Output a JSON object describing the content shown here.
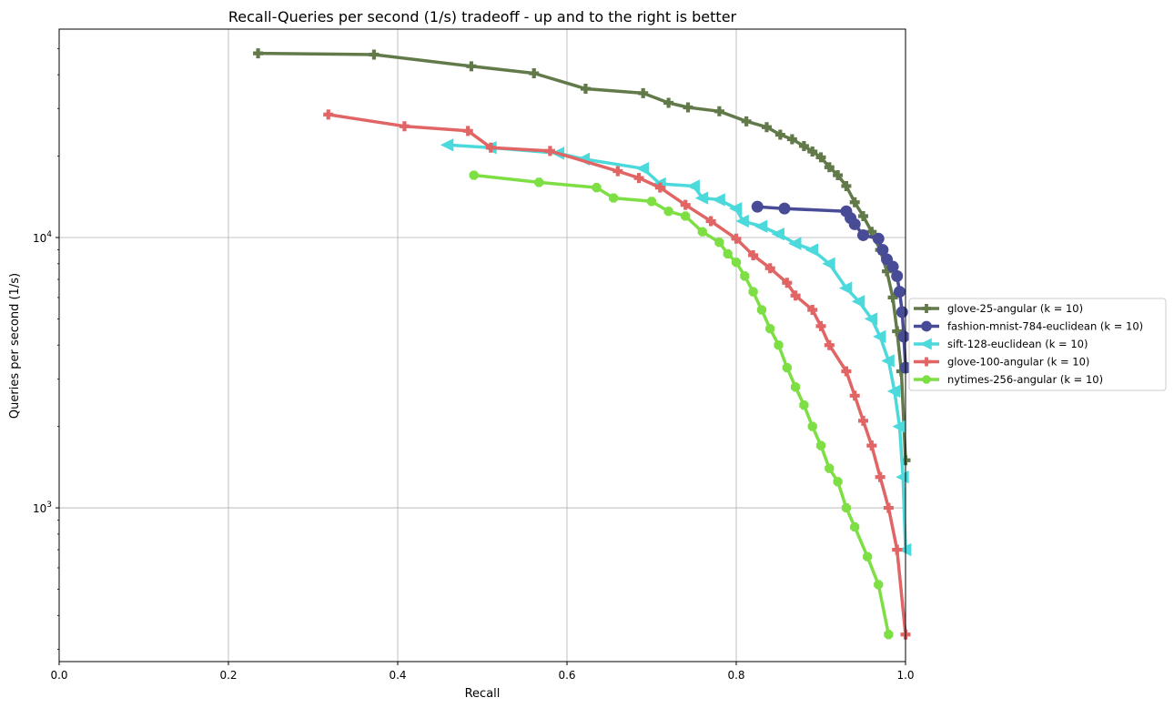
{
  "chart_data": {
    "type": "line",
    "title": "Recall-Queries per second (1/s) tradeoff - up and to the right is better",
    "xlabel": "Recall",
    "ylabel": "Queries per second (1/s)",
    "xlim": [
      0.0,
      1.0
    ],
    "ylim": [
      270,
      59000
    ],
    "yscale": "log",
    "grid": true,
    "legend_position": "outside right, center",
    "x_ticks": [
      "0.0",
      "0.2",
      "0.4",
      "0.6",
      "0.8",
      "1.0"
    ],
    "x_tick_values": [
      0.0,
      0.2,
      0.4,
      0.6,
      0.8,
      1.0
    ],
    "y_ticks": [
      {
        "value": 1000,
        "base": "10",
        "exp": "3"
      },
      {
        "value": 10000,
        "base": "10",
        "exp": "4"
      }
    ],
    "series": [
      {
        "name": "glove-25-angular (k = 10)",
        "color": "#627a4a",
        "marker": "plus",
        "x": [
          0.235,
          0.372,
          0.487,
          0.561,
          0.622,
          0.69,
          0.72,
          0.743,
          0.78,
          0.812,
          0.836,
          0.852,
          0.866,
          0.88,
          0.89,
          0.9,
          0.91,
          0.92,
          0.93,
          0.94,
          0.95,
          0.96,
          0.97,
          0.978,
          0.985,
          0.99,
          0.995,
          1.0
        ],
        "y": [
          48000,
          47500,
          43000,
          40500,
          35500,
          34200,
          31500,
          30300,
          29300,
          26900,
          25600,
          24000,
          23100,
          21800,
          20800,
          19800,
          18200,
          17000,
          15500,
          13500,
          12000,
          10500,
          9000,
          7500,
          6000,
          4500,
          3200,
          1500
        ]
      },
      {
        "name": "fashion-mnist-784-euclidean (k = 10)",
        "color": "#484b96",
        "marker": "circle",
        "x": [
          0.825,
          0.857,
          0.93,
          0.935,
          0.94,
          0.95,
          0.968,
          0.973,
          0.978,
          0.985,
          0.99,
          0.993,
          0.996,
          0.998,
          1.0
        ],
        "y": [
          13000,
          12800,
          12500,
          11800,
          11200,
          10200,
          9900,
          9000,
          8300,
          7800,
          7200,
          6300,
          5300,
          4300,
          3300
        ]
      },
      {
        "name": "sift-128-euclidean (k = 10)",
        "color": "#4bd9dc",
        "marker": "triangle-left",
        "x": [
          0.459,
          0.51,
          0.59,
          0.62,
          0.69,
          0.71,
          0.75,
          0.76,
          0.78,
          0.8,
          0.808,
          0.83,
          0.85,
          0.87,
          0.89,
          0.91,
          0.93,
          0.945,
          0.96,
          0.97,
          0.98,
          0.987,
          0.993,
          0.997,
          1.0
        ],
        "y": [
          22000,
          21500,
          20500,
          19500,
          18000,
          15800,
          15500,
          14000,
          13800,
          12800,
          11500,
          11000,
          10300,
          9500,
          9000,
          8000,
          6500,
          5800,
          5000,
          4300,
          3500,
          2700,
          2000,
          1300,
          700
        ]
      },
      {
        "name": "glove-100-angular (k = 10)",
        "color": "#e06564",
        "marker": "plus",
        "x": [
          0.318,
          0.408,
          0.483,
          0.51,
          0.58,
          0.66,
          0.685,
          0.71,
          0.74,
          0.77,
          0.8,
          0.82,
          0.84,
          0.86,
          0.87,
          0.89,
          0.9,
          0.91,
          0.93,
          0.94,
          0.95,
          0.96,
          0.97,
          0.98,
          0.99,
          1.0
        ],
        "y": [
          28500,
          25800,
          24800,
          21500,
          20900,
          17600,
          16600,
          15300,
          13200,
          11500,
          9900,
          8600,
          7700,
          6800,
          6100,
          5400,
          4700,
          4000,
          3200,
          2600,
          2100,
          1700,
          1300,
          1000,
          700,
          340
        ]
      },
      {
        "name": "nytimes-256-angular (k = 10)",
        "color": "#7ddf43",
        "marker": "octagon",
        "x": [
          0.49,
          0.567,
          0.635,
          0.655,
          0.7,
          0.72,
          0.74,
          0.76,
          0.78,
          0.79,
          0.8,
          0.81,
          0.82,
          0.83,
          0.84,
          0.85,
          0.86,
          0.87,
          0.88,
          0.89,
          0.9,
          0.91,
          0.92,
          0.93,
          0.94,
          0.955,
          0.968,
          0.98
        ],
        "y": [
          17000,
          16000,
          15300,
          14000,
          13600,
          12500,
          12000,
          10500,
          9600,
          8700,
          8100,
          7200,
          6300,
          5400,
          4600,
          4000,
          3300,
          2800,
          2400,
          2000,
          1700,
          1400,
          1250,
          1000,
          850,
          660,
          520,
          340
        ]
      }
    ]
  }
}
